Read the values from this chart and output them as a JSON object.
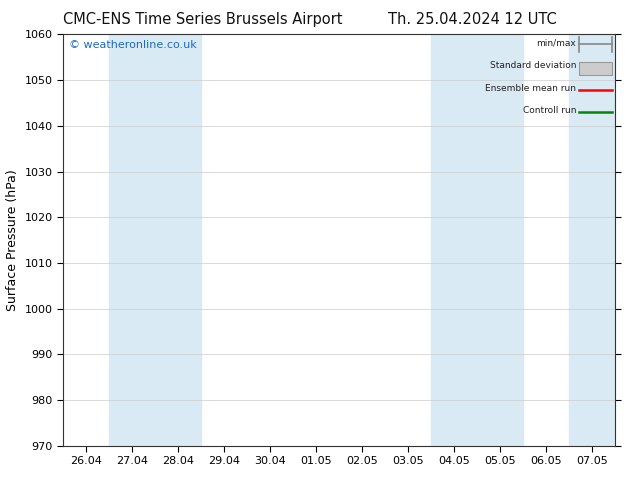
{
  "title_left": "CMC-ENS Time Series Brussels Airport",
  "title_right": "Th. 25.04.2024 12 UTC",
  "ylabel": "Surface Pressure (hPa)",
  "ylim": [
    970,
    1060
  ],
  "yticks": [
    970,
    980,
    990,
    1000,
    1010,
    1020,
    1030,
    1040,
    1050,
    1060
  ],
  "x_labels": [
    "26.04",
    "27.04",
    "28.04",
    "29.04",
    "30.04",
    "01.05",
    "02.05",
    "03.05",
    "04.05",
    "05.05",
    "06.05",
    "07.05"
  ],
  "x_values": [
    0,
    1,
    2,
    3,
    4,
    5,
    6,
    7,
    8,
    9,
    10,
    11
  ],
  "shaded_columns": [
    1,
    2,
    8,
    9,
    11
  ],
  "shaded_color": "#daeaf5",
  "watermark": "© weatheronline.co.uk",
  "watermark_color": "#1a6bc4",
  "legend_items": [
    {
      "label": "min/max",
      "color": "#aaaaaa",
      "style": "minmax"
    },
    {
      "label": "Standard deviation",
      "color": "#cccccc",
      "style": "stddev"
    },
    {
      "label": "Ensemble mean run",
      "color": "#ff0000",
      "style": "line"
    },
    {
      "label": "Controll run",
      "color": "#008800",
      "style": "line"
    }
  ],
  "bg_color": "#ffffff",
  "grid_color": "#cccccc",
  "title_fontsize": 10.5,
  "tick_fontsize": 8,
  "ylabel_fontsize": 9
}
